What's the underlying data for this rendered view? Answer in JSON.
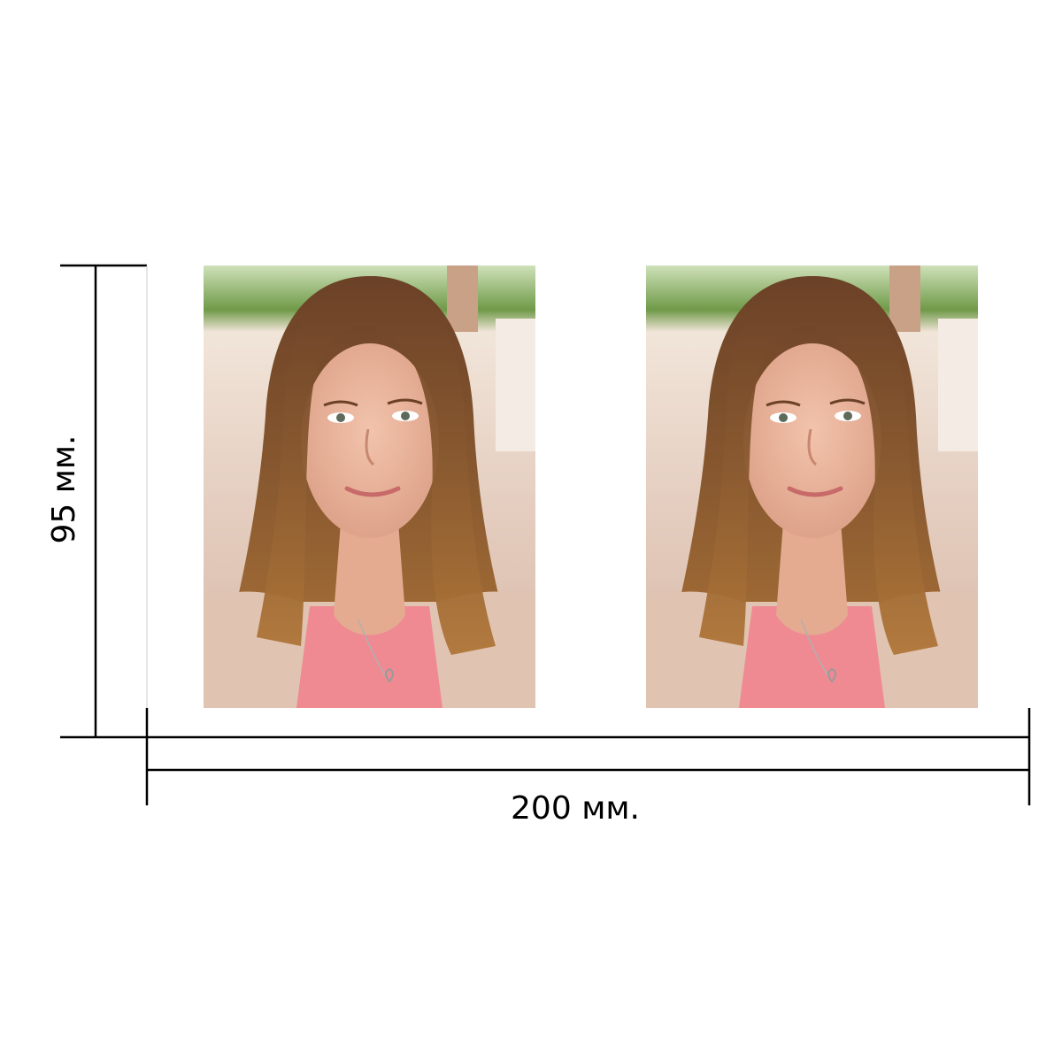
{
  "dimensions": {
    "height_label": "95 мм.",
    "width_label": "200 мм."
  },
  "photos": [
    {
      "subject": "portrait-photo-left"
    },
    {
      "subject": "portrait-photo-right"
    }
  ],
  "colors": {
    "background": "#ffffff",
    "dimension_line": "#000000",
    "hair": "#7a4a24",
    "skin": "#e9b49a",
    "shirt": "#ef8a92",
    "foliage": "#6f9a48",
    "backdrop": "#e8d8cc"
  }
}
